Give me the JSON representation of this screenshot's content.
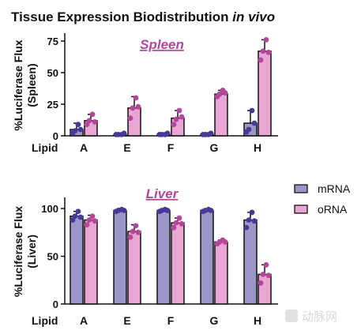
{
  "figure": {
    "title_main": "Tissue Expression Biodistribution ",
    "title_italic": "in vivo",
    "x_axis_title": "Lipid",
    "watermark": "动脉网"
  },
  "colors": {
    "mRNA": "#9b96c8",
    "oRNA": "#e9a6d4",
    "mRNA_dot": "#453a96",
    "oRNA_dot": "#b4479a",
    "subtitle": "#b4479a"
  },
  "legend": {
    "items": [
      {
        "label": "mRNA",
        "color": "#9b96c8"
      },
      {
        "label": "oRNA",
        "color": "#e9a6d4"
      }
    ]
  },
  "chart_data": [
    {
      "type": "bar",
      "subtitle": "Spleen",
      "title": "",
      "xlabel": "Lipid",
      "ylabel": "%Luciferase Flux\n(Spleen)",
      "ylim": [
        0,
        80
      ],
      "yticks": [
        0,
        25,
        50,
        75
      ],
      "categories": [
        "A",
        "E",
        "F",
        "G",
        "H"
      ],
      "series": [
        {
          "name": "mRNA",
          "values": [
            5,
            1,
            1,
            1,
            10
          ],
          "errors": [
            5,
            1,
            1,
            1,
            10
          ],
          "points": [
            [
              2,
              4,
              9,
              5
            ],
            [
              1,
              1,
              1,
              2
            ],
            [
              1,
              1,
              1,
              2
            ],
            [
              1,
              1,
              1,
              2
            ],
            [
              3,
              5,
              20,
              10
            ]
          ]
        },
        {
          "name": "oRNA",
          "values": [
            12,
            22,
            14,
            33,
            67
          ],
          "errors": [
            5,
            9,
            6,
            3,
            9
          ],
          "points": [
            [
              9,
              12,
              17,
              11
            ],
            [
              14,
              22,
              30,
              23
            ],
            [
              9,
              13,
              20,
              15
            ],
            [
              31,
              33,
              36,
              34
            ],
            [
              60,
              67,
              76,
              66
            ]
          ]
        }
      ]
    },
    {
      "type": "bar",
      "subtitle": "Liver",
      "title": "",
      "xlabel": "Lipid",
      "ylabel": "%Luciferase Flux\n(Liver)",
      "ylim": [
        0,
        110
      ],
      "yticks": [
        0,
        50,
        100
      ],
      "categories": [
        "A",
        "E",
        "F",
        "G",
        "H"
      ],
      "series": [
        {
          "name": "mRNA",
          "values": [
            92,
            98,
            98,
            98,
            88
          ],
          "errors": [
            5,
            2,
            1,
            1,
            8
          ],
          "points": [
            [
              88,
              92,
              97,
              91
            ],
            [
              97,
              98,
              99,
              98
            ],
            [
              97,
              98,
              99,
              98
            ],
            [
              97,
              98,
              99,
              98
            ],
            [
              80,
              88,
              96,
              87
            ]
          ]
        },
        {
          "name": "oRNA",
          "values": [
            88,
            76,
            85,
            65,
            31
          ],
          "errors": [
            5,
            7,
            5,
            2,
            10
          ],
          "points": [
            [
              83,
              88,
              92,
              87
            ],
            [
              70,
              76,
              82,
              75
            ],
            [
              80,
              85,
              90,
              84
            ],
            [
              63,
              65,
              67,
              65
            ],
            [
              22,
              31,
              41,
              30
            ]
          ]
        }
      ]
    }
  ]
}
